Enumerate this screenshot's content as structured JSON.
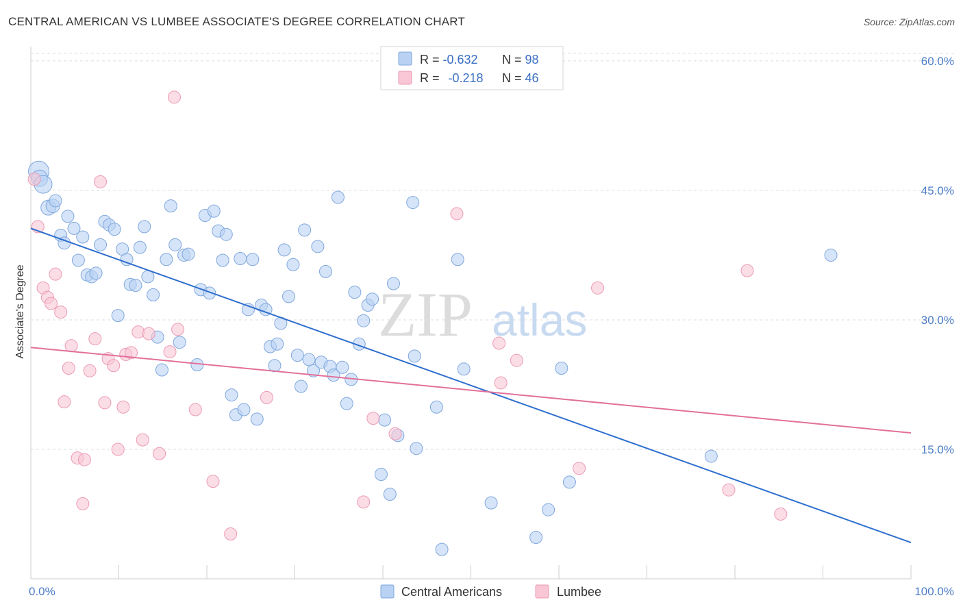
{
  "header": {
    "title": "CENTRAL AMERICAN VS LUMBEE ASSOCIATE'S DEGREE CORRELATION CHART",
    "source": "Source: ZipAtlas.com"
  },
  "watermark": {
    "zip": "ZIP",
    "atlas": "atlas"
  },
  "colors": {
    "blue_fill": "#b9d2f3",
    "blue_stroke": "#7fa7dd",
    "blue_line": "#2f6fce",
    "pink_fill": "#f8c6d5",
    "pink_stroke": "#ec9ab4",
    "pink_line": "#e2709a",
    "tick_text": "#4a7cc7"
  },
  "legend": {
    "rows": [
      {
        "r_label": "R = ",
        "r_value": "-0.632",
        "n_label": "N = ",
        "n_value": "98"
      },
      {
        "r_label": "R = ",
        "r_value": "-0.218",
        "n_label": "N = ",
        "n_value": "46"
      }
    ]
  },
  "bottom_legend": {
    "items": [
      "Central Americans",
      "Lumbee"
    ]
  },
  "chart_data": {
    "type": "scatter",
    "title": "CENTRAL AMERICAN VS LUMBEE ASSOCIATE'S DEGREE CORRELATION CHART",
    "xlabel": "",
    "ylabel": "Associate's Degree",
    "xlim": [
      0,
      100
    ],
    "ylim": [
      0,
      61.5
    ],
    "x_tick_labels": [
      "0.0%",
      "100.0%"
    ],
    "y_ticks": [
      15,
      30,
      45,
      60
    ],
    "y_tick_labels": [
      "15.0%",
      "30.0%",
      "45.0%",
      "60.0%"
    ],
    "grid": true,
    "legend_position": "top-center",
    "series": [
      {
        "name": "Central Americans",
        "r": -0.632,
        "n": 98,
        "trend": {
          "x": [
            0,
            100
          ],
          "y": [
            40.6,
            4.2
          ]
        },
        "points": [
          {
            "x": 0.9,
            "y": 47.2,
            "s": 15
          },
          {
            "x": 1.0,
            "y": 46.4,
            "s": 12
          },
          {
            "x": 1.4,
            "y": 45.7,
            "s": 13
          },
          {
            "x": 2.0,
            "y": 43.0,
            "s": 11
          },
          {
            "x": 2.5,
            "y": 43.2,
            "s": 10
          },
          {
            "x": 2.8,
            "y": 43.8,
            "s": 9
          },
          {
            "x": 3.4,
            "y": 39.8,
            "s": 9
          },
          {
            "x": 3.8,
            "y": 38.9,
            "s": 9
          },
          {
            "x": 4.2,
            "y": 42.0,
            "s": 9
          },
          {
            "x": 4.9,
            "y": 40.6,
            "s": 9
          },
          {
            "x": 5.4,
            "y": 36.9,
            "s": 9
          },
          {
            "x": 5.9,
            "y": 39.6,
            "s": 9
          },
          {
            "x": 6.4,
            "y": 35.2,
            "s": 9
          },
          {
            "x": 6.9,
            "y": 35.0,
            "s": 9
          },
          {
            "x": 7.4,
            "y": 35.4,
            "s": 9
          },
          {
            "x": 7.9,
            "y": 38.7,
            "s": 9
          },
          {
            "x": 8.4,
            "y": 41.4,
            "s": 9
          },
          {
            "x": 8.9,
            "y": 41.0,
            "s": 9
          },
          {
            "x": 9.5,
            "y": 40.5,
            "s": 9
          },
          {
            "x": 9.9,
            "y": 30.5,
            "s": 9
          },
          {
            "x": 10.4,
            "y": 38.2,
            "s": 9
          },
          {
            "x": 10.9,
            "y": 37.0,
            "s": 9
          },
          {
            "x": 11.3,
            "y": 34.1,
            "s": 9
          },
          {
            "x": 11.9,
            "y": 34.0,
            "s": 9
          },
          {
            "x": 12.4,
            "y": 38.4,
            "s": 9
          },
          {
            "x": 12.9,
            "y": 40.8,
            "s": 9
          },
          {
            "x": 13.3,
            "y": 35.0,
            "s": 9
          },
          {
            "x": 13.9,
            "y": 32.9,
            "s": 9
          },
          {
            "x": 14.4,
            "y": 28.0,
            "s": 9
          },
          {
            "x": 14.9,
            "y": 24.2,
            "s": 9
          },
          {
            "x": 15.4,
            "y": 37.0,
            "s": 9
          },
          {
            "x": 15.9,
            "y": 43.2,
            "s": 9
          },
          {
            "x": 16.4,
            "y": 38.7,
            "s": 9
          },
          {
            "x": 16.9,
            "y": 27.4,
            "s": 9
          },
          {
            "x": 17.4,
            "y": 37.5,
            "s": 9
          },
          {
            "x": 17.9,
            "y": 37.6,
            "s": 9
          },
          {
            "x": 18.9,
            "y": 24.8,
            "s": 9
          },
          {
            "x": 19.3,
            "y": 33.5,
            "s": 9
          },
          {
            "x": 19.8,
            "y": 42.1,
            "s": 9
          },
          {
            "x": 20.3,
            "y": 33.1,
            "s": 9
          },
          {
            "x": 20.8,
            "y": 42.6,
            "s": 9
          },
          {
            "x": 21.3,
            "y": 40.3,
            "s": 9
          },
          {
            "x": 21.8,
            "y": 36.9,
            "s": 9
          },
          {
            "x": 22.2,
            "y": 39.9,
            "s": 9
          },
          {
            "x": 22.8,
            "y": 21.3,
            "s": 9
          },
          {
            "x": 23.3,
            "y": 19.0,
            "s": 9
          },
          {
            "x": 23.8,
            "y": 37.1,
            "s": 9
          },
          {
            "x": 24.2,
            "y": 19.6,
            "s": 9
          },
          {
            "x": 24.7,
            "y": 31.2,
            "s": 9
          },
          {
            "x": 25.2,
            "y": 37.0,
            "s": 9
          },
          {
            "x": 25.7,
            "y": 18.5,
            "s": 9
          },
          {
            "x": 26.2,
            "y": 31.7,
            "s": 9
          },
          {
            "x": 26.7,
            "y": 31.2,
            "s": 9
          },
          {
            "x": 27.2,
            "y": 26.9,
            "s": 9
          },
          {
            "x": 27.7,
            "y": 24.7,
            "s": 9
          },
          {
            "x": 28.0,
            "y": 27.2,
            "s": 9
          },
          {
            "x": 28.4,
            "y": 29.6,
            "s": 9
          },
          {
            "x": 28.8,
            "y": 38.1,
            "s": 9
          },
          {
            "x": 29.3,
            "y": 32.7,
            "s": 9
          },
          {
            "x": 29.8,
            "y": 36.4,
            "s": 9
          },
          {
            "x": 30.3,
            "y": 25.9,
            "s": 9
          },
          {
            "x": 30.7,
            "y": 22.3,
            "s": 9
          },
          {
            "x": 31.1,
            "y": 40.4,
            "s": 9
          },
          {
            "x": 31.6,
            "y": 25.4,
            "s": 9
          },
          {
            "x": 32.1,
            "y": 24.1,
            "s": 9
          },
          {
            "x": 32.6,
            "y": 38.5,
            "s": 9
          },
          {
            "x": 33.0,
            "y": 25.1,
            "s": 9
          },
          {
            "x": 33.5,
            "y": 35.6,
            "s": 9
          },
          {
            "x": 34.0,
            "y": 24.6,
            "s": 9
          },
          {
            "x": 34.4,
            "y": 23.6,
            "s": 9
          },
          {
            "x": 34.9,
            "y": 44.2,
            "s": 9
          },
          {
            "x": 35.4,
            "y": 24.5,
            "s": 9
          },
          {
            "x": 35.9,
            "y": 20.3,
            "s": 9
          },
          {
            "x": 36.4,
            "y": 23.1,
            "s": 9
          },
          {
            "x": 36.8,
            "y": 33.2,
            "s": 9
          },
          {
            "x": 37.3,
            "y": 27.2,
            "s": 9
          },
          {
            "x": 37.8,
            "y": 29.9,
            "s": 9
          },
          {
            "x": 38.3,
            "y": 31.7,
            "s": 9
          },
          {
            "x": 38.8,
            "y": 32.4,
            "s": 9
          },
          {
            "x": 39.8,
            "y": 12.1,
            "s": 9
          },
          {
            "x": 40.2,
            "y": 18.4,
            "s": 9
          },
          {
            "x": 40.8,
            "y": 9.8,
            "s": 9
          },
          {
            "x": 41.2,
            "y": 34.2,
            "s": 9
          },
          {
            "x": 41.7,
            "y": 16.6,
            "s": 9
          },
          {
            "x": 43.4,
            "y": 43.6,
            "s": 9
          },
          {
            "x": 43.6,
            "y": 25.8,
            "s": 9
          },
          {
            "x": 43.8,
            "y": 15.1,
            "s": 9
          },
          {
            "x": 46.1,
            "y": 19.9,
            "s": 9
          },
          {
            "x": 46.7,
            "y": 3.4,
            "s": 9
          },
          {
            "x": 48.5,
            "y": 37.0,
            "s": 9
          },
          {
            "x": 49.2,
            "y": 24.3,
            "s": 9
          },
          {
            "x": 52.3,
            "y": 8.8,
            "s": 9
          },
          {
            "x": 57.4,
            "y": 4.8,
            "s": 9
          },
          {
            "x": 58.8,
            "y": 8.0,
            "s": 9
          },
          {
            "x": 60.3,
            "y": 24.4,
            "s": 9
          },
          {
            "x": 61.2,
            "y": 11.2,
            "s": 9
          },
          {
            "x": 77.3,
            "y": 14.2,
            "s": 9
          },
          {
            "x": 90.9,
            "y": 37.5,
            "s": 9
          }
        ]
      },
      {
        "name": "Lumbee",
        "r": -0.218,
        "n": 46,
        "trend": {
          "x": [
            0,
            100
          ],
          "y": [
            26.8,
            16.9
          ]
        },
        "points": [
          {
            "x": 0.4,
            "y": 46.3,
            "s": 9
          },
          {
            "x": 0.8,
            "y": 40.8,
            "s": 9
          },
          {
            "x": 1.4,
            "y": 33.7,
            "s": 9
          },
          {
            "x": 1.9,
            "y": 32.6,
            "s": 9
          },
          {
            "x": 2.3,
            "y": 31.9,
            "s": 9
          },
          {
            "x": 2.8,
            "y": 35.3,
            "s": 9
          },
          {
            "x": 3.4,
            "y": 30.9,
            "s": 9
          },
          {
            "x": 3.8,
            "y": 20.5,
            "s": 9
          },
          {
            "x": 4.3,
            "y": 24.4,
            "s": 9
          },
          {
            "x": 4.6,
            "y": 27.0,
            "s": 9
          },
          {
            "x": 5.3,
            "y": 14.0,
            "s": 9
          },
          {
            "x": 5.9,
            "y": 8.7,
            "s": 9
          },
          {
            "x": 6.1,
            "y": 13.8,
            "s": 9
          },
          {
            "x": 6.7,
            "y": 24.1,
            "s": 9
          },
          {
            "x": 7.3,
            "y": 27.8,
            "s": 9
          },
          {
            "x": 7.9,
            "y": 46.0,
            "s": 9
          },
          {
            "x": 8.4,
            "y": 20.4,
            "s": 9
          },
          {
            "x": 8.8,
            "y": 25.5,
            "s": 9
          },
          {
            "x": 9.4,
            "y": 24.7,
            "s": 9
          },
          {
            "x": 9.9,
            "y": 15.0,
            "s": 9
          },
          {
            "x": 10.5,
            "y": 19.9,
            "s": 9
          },
          {
            "x": 10.8,
            "y": 26.0,
            "s": 9
          },
          {
            "x": 11.4,
            "y": 26.2,
            "s": 9
          },
          {
            "x": 12.2,
            "y": 28.6,
            "s": 9
          },
          {
            "x": 12.7,
            "y": 16.1,
            "s": 9
          },
          {
            "x": 13.4,
            "y": 28.4,
            "s": 9
          },
          {
            "x": 14.6,
            "y": 14.5,
            "s": 9
          },
          {
            "x": 15.8,
            "y": 26.3,
            "s": 9
          },
          {
            "x": 16.3,
            "y": 55.8,
            "s": 9
          },
          {
            "x": 16.7,
            "y": 28.9,
            "s": 9
          },
          {
            "x": 18.7,
            "y": 19.6,
            "s": 9
          },
          {
            "x": 20.7,
            "y": 11.3,
            "s": 9
          },
          {
            "x": 22.7,
            "y": 5.2,
            "s": 9
          },
          {
            "x": 26.8,
            "y": 21.0,
            "s": 9
          },
          {
            "x": 37.8,
            "y": 8.9,
            "s": 9
          },
          {
            "x": 38.9,
            "y": 18.6,
            "s": 9
          },
          {
            "x": 41.4,
            "y": 16.8,
            "s": 9
          },
          {
            "x": 48.4,
            "y": 42.3,
            "s": 9
          },
          {
            "x": 53.2,
            "y": 27.3,
            "s": 9
          },
          {
            "x": 53.4,
            "y": 22.7,
            "s": 9
          },
          {
            "x": 55.2,
            "y": 25.3,
            "s": 9
          },
          {
            "x": 62.3,
            "y": 12.8,
            "s": 9
          },
          {
            "x": 64.4,
            "y": 33.7,
            "s": 9
          },
          {
            "x": 79.3,
            "y": 10.3,
            "s": 9
          },
          {
            "x": 81.4,
            "y": 35.7,
            "s": 9
          },
          {
            "x": 85.2,
            "y": 7.5,
            "s": 9
          }
        ]
      }
    ]
  }
}
